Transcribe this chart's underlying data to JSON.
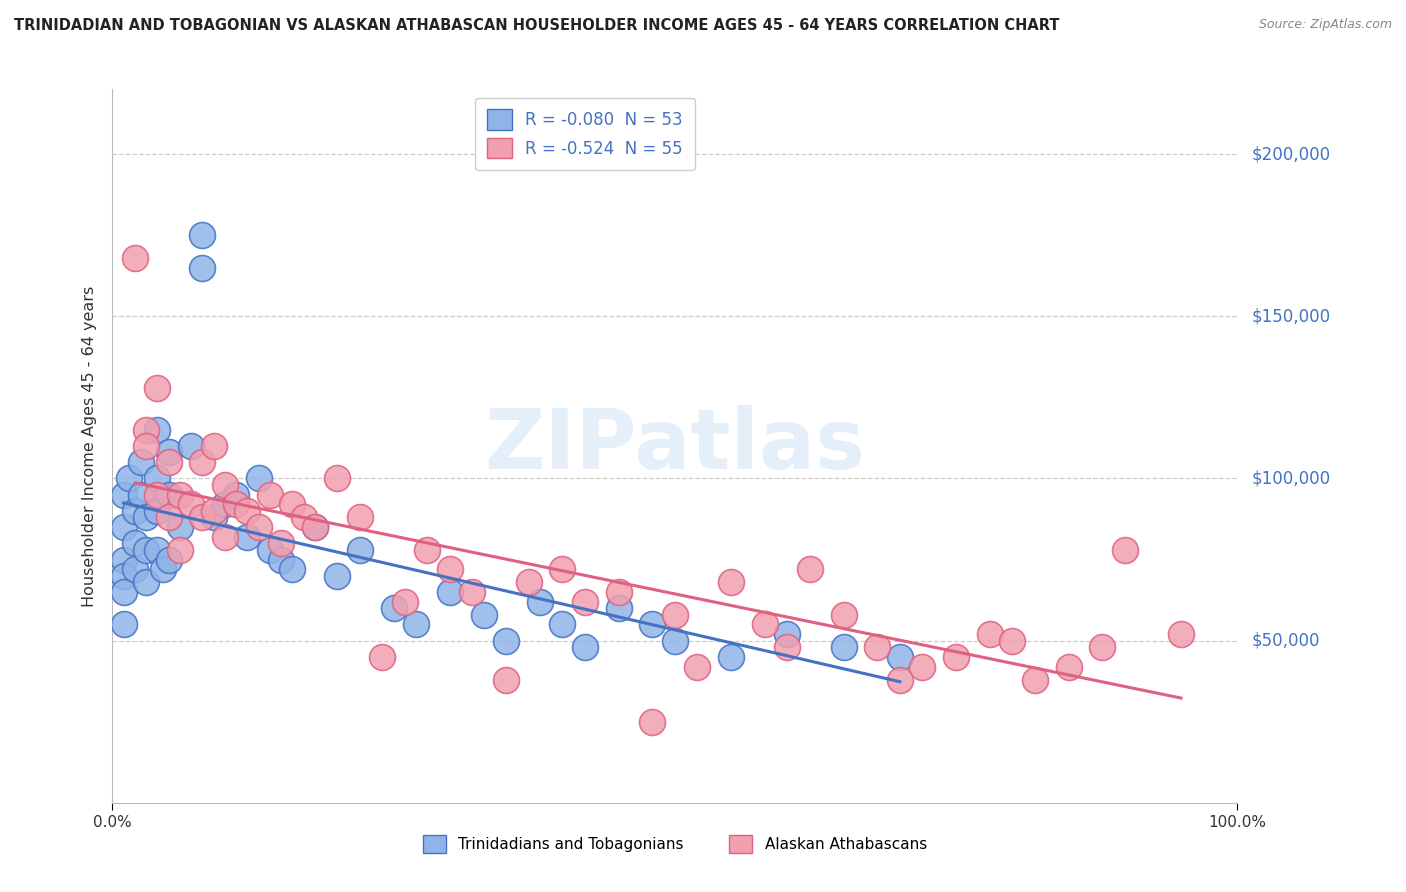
{
  "title": "TRINIDADIAN AND TOBAGONIAN VS ALASKAN ATHABASCAN HOUSEHOLDER INCOME AGES 45 - 64 YEARS CORRELATION CHART",
  "source": "Source: ZipAtlas.com",
  "ylabel": "Householder Income Ages 45 - 64 years",
  "ytick_labels": [
    "$50,000",
    "$100,000",
    "$150,000",
    "$200,000"
  ],
  "ytick_values": [
    50000,
    100000,
    150000,
    200000
  ],
  "r_blue": -0.08,
  "n_blue": 53,
  "r_pink": -0.524,
  "n_pink": 55,
  "legend_label_blue": "Trinidadians and Tobagonians",
  "legend_label_pink": "Alaskan Athabascans",
  "color_blue": "#90b4e8",
  "color_pink": "#f0a0b0",
  "line_color_blue": "#4472c4",
  "line_color_pink": "#e06080",
  "background_color": "#ffffff",
  "xmin": 0.0,
  "xmax": 1.0,
  "ymin": 0,
  "ymax": 220000,
  "title_color": "#222222",
  "blue_scatter_x": [
    0.01,
    0.01,
    0.01,
    0.01,
    0.01,
    0.01,
    0.015,
    0.02,
    0.02,
    0.02,
    0.025,
    0.025,
    0.03,
    0.03,
    0.03,
    0.04,
    0.04,
    0.04,
    0.04,
    0.045,
    0.05,
    0.05,
    0.05,
    0.06,
    0.07,
    0.08,
    0.08,
    0.09,
    0.1,
    0.11,
    0.12,
    0.13,
    0.14,
    0.15,
    0.16,
    0.18,
    0.2,
    0.22,
    0.25,
    0.27,
    0.3,
    0.33,
    0.35,
    0.38,
    0.4,
    0.42,
    0.45,
    0.48,
    0.5,
    0.55,
    0.6,
    0.65,
    0.7
  ],
  "blue_scatter_y": [
    95000,
    85000,
    75000,
    70000,
    65000,
    55000,
    100000,
    90000,
    80000,
    72000,
    105000,
    95000,
    88000,
    78000,
    68000,
    115000,
    100000,
    90000,
    78000,
    72000,
    108000,
    95000,
    75000,
    85000,
    110000,
    165000,
    175000,
    88000,
    92000,
    95000,
    82000,
    100000,
    78000,
    75000,
    72000,
    85000,
    70000,
    78000,
    60000,
    55000,
    65000,
    58000,
    50000,
    62000,
    55000,
    48000,
    60000,
    55000,
    50000,
    45000,
    52000,
    48000,
    45000
  ],
  "pink_scatter_x": [
    0.02,
    0.03,
    0.03,
    0.04,
    0.04,
    0.05,
    0.05,
    0.06,
    0.06,
    0.07,
    0.08,
    0.08,
    0.09,
    0.09,
    0.1,
    0.1,
    0.11,
    0.12,
    0.13,
    0.14,
    0.15,
    0.16,
    0.17,
    0.18,
    0.2,
    0.22,
    0.24,
    0.26,
    0.28,
    0.3,
    0.32,
    0.35,
    0.37,
    0.4,
    0.42,
    0.45,
    0.48,
    0.5,
    0.52,
    0.55,
    0.58,
    0.6,
    0.62,
    0.65,
    0.68,
    0.7,
    0.72,
    0.75,
    0.78,
    0.8,
    0.82,
    0.85,
    0.88,
    0.9,
    0.95
  ],
  "pink_scatter_y": [
    168000,
    115000,
    110000,
    128000,
    95000,
    105000,
    88000,
    95000,
    78000,
    92000,
    105000,
    88000,
    110000,
    90000,
    98000,
    82000,
    92000,
    90000,
    85000,
    95000,
    80000,
    92000,
    88000,
    85000,
    100000,
    88000,
    45000,
    62000,
    78000,
    72000,
    65000,
    38000,
    68000,
    72000,
    62000,
    65000,
    25000,
    58000,
    42000,
    68000,
    55000,
    48000,
    72000,
    58000,
    48000,
    38000,
    42000,
    45000,
    52000,
    50000,
    38000,
    42000,
    48000,
    78000,
    52000
  ]
}
